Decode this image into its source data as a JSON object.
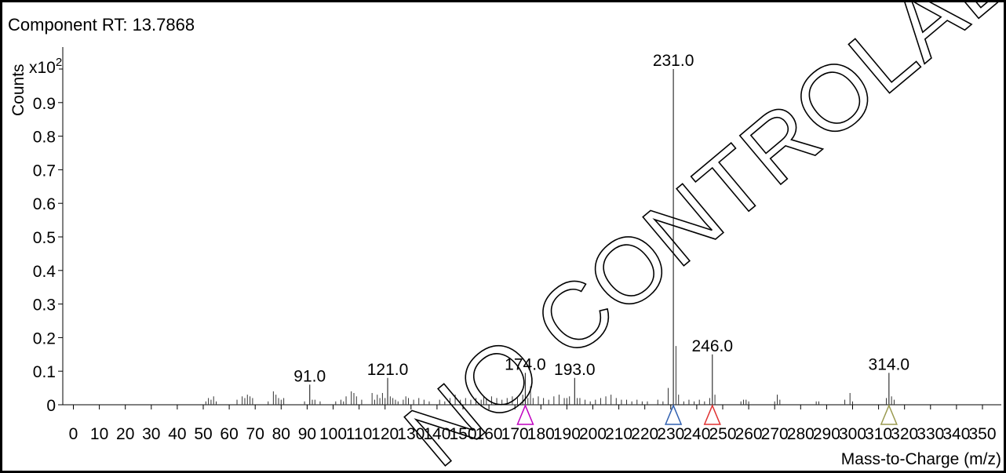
{
  "chart_data": {
    "type": "bar",
    "title": "Component RT: 13.7868",
    "ylabel": "Counts",
    "y_multiplier": "x10",
    "y_multiplier_exponent": "2",
    "xlabel": "Mass-to-Charge (m/z)",
    "xlim": [
      0,
      355
    ],
    "ylim": [
      0,
      1.0
    ],
    "x_ticks": [
      0,
      10,
      20,
      30,
      40,
      50,
      60,
      70,
      80,
      90,
      100,
      110,
      120,
      130,
      140,
      150,
      160,
      170,
      180,
      190,
      200,
      210,
      220,
      230,
      240,
      250,
      260,
      270,
      280,
      290,
      300,
      310,
      320,
      330,
      340,
      350
    ],
    "y_ticks": [
      0,
      0.1,
      0.2,
      0.3,
      0.4,
      0.5,
      0.6,
      0.7,
      0.8,
      0.9
    ],
    "y_tick_labels": [
      "0",
      "0.1",
      "0.2",
      "0.3",
      "0.4",
      "0.5",
      "0.6",
      "0.7",
      "0.8",
      "0.9"
    ],
    "grid": false,
    "labeled_peaks": [
      {
        "x": 91.0,
        "y": 0.06,
        "label": "91.0"
      },
      {
        "x": 121.0,
        "y": 0.08,
        "label": "121.0"
      },
      {
        "x": 174.0,
        "y": 0.095,
        "label": "174.0"
      },
      {
        "x": 193.0,
        "y": 0.08,
        "label": "193.0"
      },
      {
        "x": 231.0,
        "y": 1.0,
        "label": "231.0"
      },
      {
        "x": 246.0,
        "y": 0.15,
        "label": "246.0"
      },
      {
        "x": 314.0,
        "y": 0.095,
        "label": "314.0"
      }
    ],
    "peaks": [
      {
        "x": 51,
        "y": 0.01
      },
      {
        "x": 52,
        "y": 0.02
      },
      {
        "x": 53,
        "y": 0.015
      },
      {
        "x": 54,
        "y": 0.025
      },
      {
        "x": 55,
        "y": 0.01
      },
      {
        "x": 63,
        "y": 0.015
      },
      {
        "x": 65,
        "y": 0.025
      },
      {
        "x": 66,
        "y": 0.02
      },
      {
        "x": 67,
        "y": 0.03
      },
      {
        "x": 68,
        "y": 0.025
      },
      {
        "x": 69,
        "y": 0.02
      },
      {
        "x": 75,
        "y": 0.01
      },
      {
        "x": 77,
        "y": 0.04
      },
      {
        "x": 78,
        "y": 0.03
      },
      {
        "x": 79,
        "y": 0.02
      },
      {
        "x": 80,
        "y": 0.015
      },
      {
        "x": 81,
        "y": 0.02
      },
      {
        "x": 89,
        "y": 0.01
      },
      {
        "x": 92,
        "y": 0.015
      },
      {
        "x": 93,
        "y": 0.015
      },
      {
        "x": 95,
        "y": 0.01
      },
      {
        "x": 101,
        "y": 0.01
      },
      {
        "x": 103,
        "y": 0.015
      },
      {
        "x": 104,
        "y": 0.01
      },
      {
        "x": 105,
        "y": 0.025
      },
      {
        "x": 107,
        "y": 0.04
      },
      {
        "x": 108,
        "y": 0.035
      },
      {
        "x": 109,
        "y": 0.025
      },
      {
        "x": 111,
        "y": 0.015
      },
      {
        "x": 115,
        "y": 0.035
      },
      {
        "x": 116,
        "y": 0.015
      },
      {
        "x": 117,
        "y": 0.03
      },
      {
        "x": 118,
        "y": 0.02
      },
      {
        "x": 119,
        "y": 0.035
      },
      {
        "x": 120,
        "y": 0.02
      },
      {
        "x": 122,
        "y": 0.025
      },
      {
        "x": 123,
        "y": 0.02
      },
      {
        "x": 124,
        "y": 0.015
      },
      {
        "x": 125,
        "y": 0.01
      },
      {
        "x": 127,
        "y": 0.015
      },
      {
        "x": 128,
        "y": 0.025
      },
      {
        "x": 129,
        "y": 0.02
      },
      {
        "x": 131,
        "y": 0.015
      },
      {
        "x": 133,
        "y": 0.02
      },
      {
        "x": 135,
        "y": 0.015
      },
      {
        "x": 137,
        "y": 0.01
      },
      {
        "x": 141,
        "y": 0.015
      },
      {
        "x": 143,
        "y": 0.01
      },
      {
        "x": 145,
        "y": 0.02
      },
      {
        "x": 147,
        "y": 0.03
      },
      {
        "x": 149,
        "y": 0.015
      },
      {
        "x": 151,
        "y": 0.02
      },
      {
        "x": 153,
        "y": 0.015
      },
      {
        "x": 155,
        "y": 0.02
      },
      {
        "x": 157,
        "y": 0.015
      },
      {
        "x": 158,
        "y": 0.025
      },
      {
        "x": 159,
        "y": 0.02
      },
      {
        "x": 161,
        "y": 0.025
      },
      {
        "x": 163,
        "y": 0.02
      },
      {
        "x": 165,
        "y": 0.015
      },
      {
        "x": 167,
        "y": 0.02
      },
      {
        "x": 169,
        "y": 0.025
      },
      {
        "x": 171,
        "y": 0.02
      },
      {
        "x": 173,
        "y": 0.03
      },
      {
        "x": 175,
        "y": 0.02
      },
      {
        "x": 176,
        "y": 0.055
      },
      {
        "x": 177,
        "y": 0.02
      },
      {
        "x": 179,
        "y": 0.025
      },
      {
        "x": 181,
        "y": 0.02
      },
      {
        "x": 183,
        "y": 0.015
      },
      {
        "x": 185,
        "y": 0.025
      },
      {
        "x": 187,
        "y": 0.03
      },
      {
        "x": 189,
        "y": 0.02
      },
      {
        "x": 190,
        "y": 0.02
      },
      {
        "x": 191,
        "y": 0.025
      },
      {
        "x": 194,
        "y": 0.02
      },
      {
        "x": 195,
        "y": 0.02
      },
      {
        "x": 197,
        "y": 0.015
      },
      {
        "x": 199,
        "y": 0.01
      },
      {
        "x": 201,
        "y": 0.015
      },
      {
        "x": 203,
        "y": 0.02
      },
      {
        "x": 205,
        "y": 0.025
      },
      {
        "x": 207,
        "y": 0.03
      },
      {
        "x": 209,
        "y": 0.02
      },
      {
        "x": 211,
        "y": 0.015
      },
      {
        "x": 213,
        "y": 0.015
      },
      {
        "x": 215,
        "y": 0.01
      },
      {
        "x": 217,
        "y": 0.015
      },
      {
        "x": 219,
        "y": 0.01
      },
      {
        "x": 221,
        "y": 0.01
      },
      {
        "x": 225,
        "y": 0.015
      },
      {
        "x": 227,
        "y": 0.01
      },
      {
        "x": 229,
        "y": 0.05
      },
      {
        "x": 232,
        "y": 0.175
      },
      {
        "x": 233,
        "y": 0.03
      },
      {
        "x": 235,
        "y": 0.01
      },
      {
        "x": 237,
        "y": 0.015
      },
      {
        "x": 239,
        "y": 0.01
      },
      {
        "x": 241,
        "y": 0.015
      },
      {
        "x": 243,
        "y": 0.01
      },
      {
        "x": 245,
        "y": 0.02
      },
      {
        "x": 247,
        "y": 0.03
      },
      {
        "x": 257,
        "y": 0.01
      },
      {
        "x": 258,
        "y": 0.015
      },
      {
        "x": 259,
        "y": 0.015
      },
      {
        "x": 260,
        "y": 0.01
      },
      {
        "x": 270,
        "y": 0.01
      },
      {
        "x": 271,
        "y": 0.03
      },
      {
        "x": 272,
        "y": 0.015
      },
      {
        "x": 286,
        "y": 0.01
      },
      {
        "x": 287,
        "y": 0.01
      },
      {
        "x": 297,
        "y": 0.015
      },
      {
        "x": 299,
        "y": 0.035
      },
      {
        "x": 300,
        "y": 0.01
      },
      {
        "x": 313,
        "y": 0.02
      },
      {
        "x": 315,
        "y": 0.025
      },
      {
        "x": 316,
        "y": 0.015
      }
    ],
    "markers": [
      {
        "x": 174,
        "color": "#c000c0"
      },
      {
        "x": 231,
        "color": "#3060b0"
      },
      {
        "x": 246,
        "color": "#e03030"
      },
      {
        "x": 314,
        "color": "#9a9a50"
      }
    ],
    "watermark": "NO CONTROLADA"
  }
}
